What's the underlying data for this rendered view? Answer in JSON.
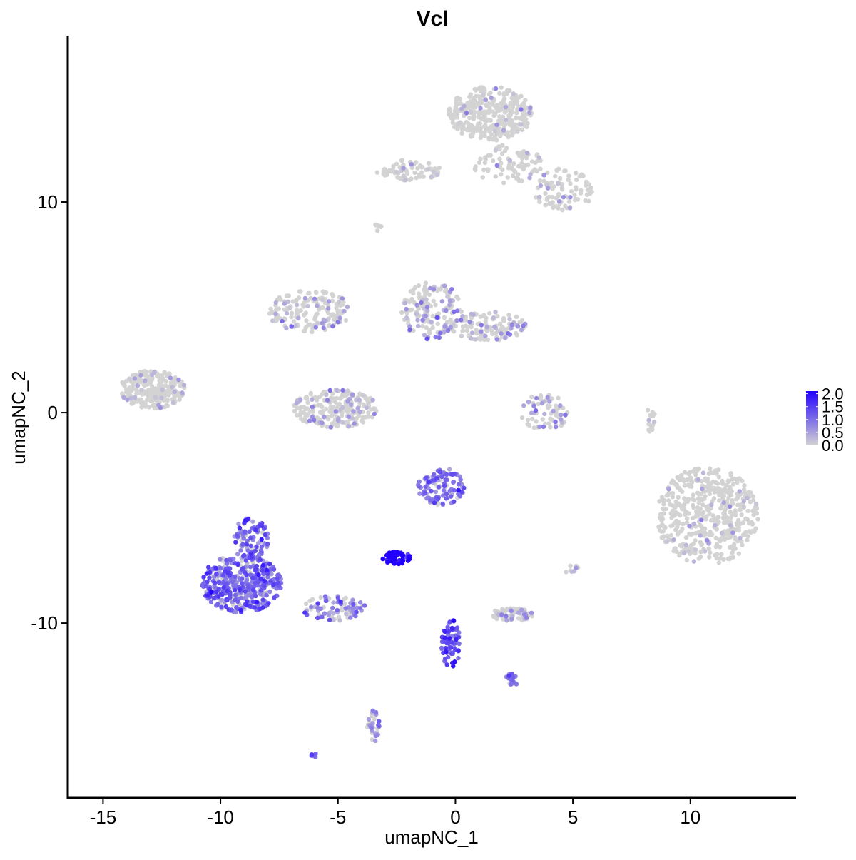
{
  "chart_data": {
    "type": "scatter",
    "title": "Vcl",
    "xlabel": "umapNC_1",
    "ylabel": "umapNC_2",
    "xlim": [
      -16.5,
      14.5
    ],
    "ylim": [
      -18.3,
      17.9
    ],
    "xticks": [
      -15,
      -10,
      -5,
      0,
      5,
      10
    ],
    "xtick_labels": [
      "-15",
      "-10",
      "-5",
      "0",
      "5",
      "10"
    ],
    "yticks": [
      -10,
      0,
      10
    ],
    "ytick_labels": [
      "-10",
      "0",
      "10"
    ],
    "grid": false,
    "point_color": {
      "low": "#d3d3d3",
      "high": "#2200ff"
    },
    "legend": {
      "position": "right",
      "type": "colorbar",
      "range": [
        0,
        2.1
      ],
      "ticks": [
        0,
        0.5,
        1,
        1.5,
        2
      ],
      "tick_labels": [
        "0.0",
        "0.5",
        "1.0",
        "1.5",
        "2.0"
      ]
    },
    "clusters": [
      {
        "cx": 1.5,
        "cy": 14.2,
        "rx": 1.8,
        "ry": 1.3,
        "n": 340,
        "expr": 0.08
      },
      {
        "cx": 2.2,
        "cy": 11.8,
        "rx": 1.5,
        "ry": 0.9,
        "n": 80,
        "expr": 0.06
      },
      {
        "cx": 4.6,
        "cy": 10.6,
        "rx": 1.3,
        "ry": 1.0,
        "n": 90,
        "expr": 0.08
      },
      {
        "cx": -2.0,
        "cy": 11.5,
        "rx": 1.4,
        "ry": 0.5,
        "n": 70,
        "expr": 0.15
      },
      {
        "cx": -12.9,
        "cy": 1.1,
        "rx": 1.4,
        "ry": 0.9,
        "n": 250,
        "expr": 0.1
      },
      {
        "cx": -6.2,
        "cy": 4.8,
        "rx": 1.8,
        "ry": 1.0,
        "n": 160,
        "expr": 0.2
      },
      {
        "cx": -5.1,
        "cy": 0.2,
        "rx": 1.8,
        "ry": 0.9,
        "n": 220,
        "expr": 0.2
      },
      {
        "cx": -1.0,
        "cy": 4.8,
        "rx": 1.3,
        "ry": 1.4,
        "n": 160,
        "expr": 0.35
      },
      {
        "cx": 1.4,
        "cy": 4.1,
        "rx": 1.6,
        "ry": 0.7,
        "n": 120,
        "expr": 0.25
      },
      {
        "cx": 3.8,
        "cy": 0.0,
        "rx": 1.0,
        "ry": 0.9,
        "n": 70,
        "expr": 0.35
      },
      {
        "cx": 10.7,
        "cy": -4.9,
        "rx": 2.2,
        "ry": 2.3,
        "n": 480,
        "expr": 0.08
      },
      {
        "cx": -0.6,
        "cy": -3.5,
        "rx": 1.0,
        "ry": 0.9,
        "n": 110,
        "expr": 0.7
      },
      {
        "cx": -9.1,
        "cy": -8.1,
        "rx": 1.7,
        "ry": 1.4,
        "n": 420,
        "expr": 0.75
      },
      {
        "cx": -8.7,
        "cy": -6.0,
        "rx": 0.8,
        "ry": 1.0,
        "n": 90,
        "expr": 0.8
      },
      {
        "cx": -5.2,
        "cy": -9.3,
        "rx": 1.4,
        "ry": 0.6,
        "n": 90,
        "expr": 0.55
      },
      {
        "cx": -2.5,
        "cy": -6.9,
        "rx": 0.6,
        "ry": 0.3,
        "n": 60,
        "expr": 1.6
      },
      {
        "cx": 2.4,
        "cy": -9.6,
        "rx": 0.9,
        "ry": 0.3,
        "n": 80,
        "expr": 0.25
      },
      {
        "cx": -0.2,
        "cy": -11.0,
        "rx": 0.4,
        "ry": 1.2,
        "n": 70,
        "expr": 1.0
      },
      {
        "cx": 2.4,
        "cy": -12.7,
        "rx": 0.3,
        "ry": 0.3,
        "n": 20,
        "expr": 0.7
      },
      {
        "cx": -3.5,
        "cy": -14.9,
        "rx": 0.3,
        "ry": 0.8,
        "n": 35,
        "expr": 0.55
      },
      {
        "cx": 8.3,
        "cy": -0.3,
        "rx": 0.2,
        "ry": 0.6,
        "n": 15,
        "expr": 0.05
      },
      {
        "cx": 5.0,
        "cy": -7.5,
        "rx": 0.3,
        "ry": 0.3,
        "n": 10,
        "expr": 0.35
      },
      {
        "cx": -6.0,
        "cy": -16.3,
        "rx": 0.15,
        "ry": 0.1,
        "n": 6,
        "expr": 0.9
      },
      {
        "cx": -3.3,
        "cy": 8.8,
        "rx": 0.2,
        "ry": 0.2,
        "n": 6,
        "expr": 0.3
      }
    ]
  }
}
